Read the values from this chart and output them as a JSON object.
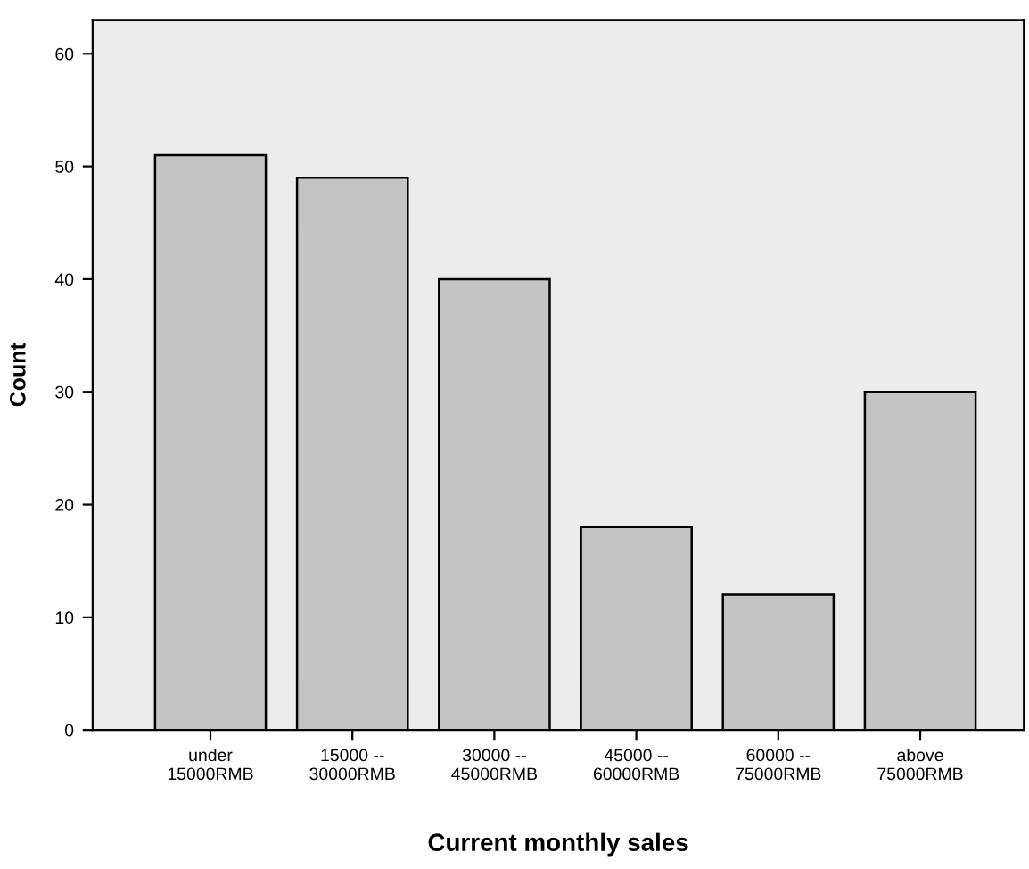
{
  "chart_data": {
    "type": "bar",
    "xlabel": "Current monthly sales",
    "ylabel": "Count",
    "categories": [
      "under\n15000RMB",
      "15000 --\n30000RMB",
      "30000 --\n45000RMB",
      "45000 --\n60000RMB",
      "60000 --\n75000RMB",
      "above\n75000RMB"
    ],
    "values": [
      51,
      49,
      40,
      18,
      12,
      30
    ],
    "color": "#c4c4c4",
    "ylim": [
      0,
      63
    ],
    "yticks": [
      0,
      10,
      20,
      30,
      40,
      50,
      60
    ],
    "grid": false
  }
}
